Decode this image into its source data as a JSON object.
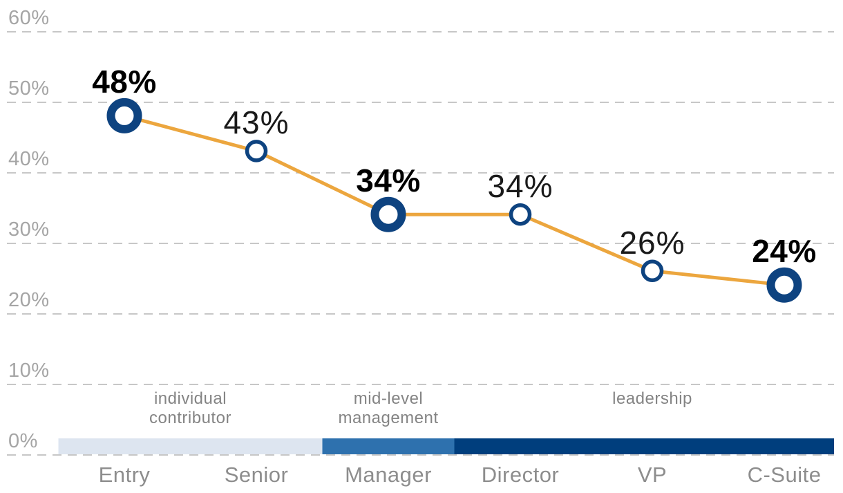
{
  "chart_data": {
    "type": "line",
    "title": "",
    "xlabel": "",
    "ylabel": "",
    "categories": [
      "Entry",
      "Senior",
      "Manager",
      "Director",
      "VP",
      "C-Suite"
    ],
    "values": [
      48,
      43,
      34,
      34,
      26,
      24
    ],
    "point_labels": [
      "48%",
      "43%",
      "34%",
      "34%",
      "26%",
      "24%"
    ],
    "emphasized": [
      true,
      false,
      true,
      false,
      false,
      true
    ],
    "ylim": [
      0,
      60
    ],
    "grid": "horizontal dashed",
    "legend": "none",
    "yticks": [
      {
        "value": 60,
        "label": "60%"
      },
      {
        "value": 50,
        "label": "50%"
      },
      {
        "value": 40,
        "label": "40%"
      },
      {
        "value": 30,
        "label": "30%"
      },
      {
        "value": 20,
        "label": "20%"
      },
      {
        "value": 10,
        "label": "10%"
      },
      {
        "value": 0,
        "label": "0%"
      }
    ],
    "groups": [
      {
        "label": "individual contributor",
        "from": 0,
        "to": 1,
        "color": "#dde5f0"
      },
      {
        "label": "mid-level management",
        "from": 2,
        "to": 2,
        "color": "#2e71ae"
      },
      {
        "label": "leadership",
        "from": 3,
        "to": 5,
        "color": "#003e7d"
      }
    ],
    "colors": {
      "line": "#eca63e",
      "marker": "#0e4380",
      "marker_fill": "#ffffff",
      "gridline": "#c7c7c7",
      "y_axis_text": "#a5a5a5",
      "x_axis_text": "#8d8d8d",
      "group_text": "#848484",
      "label_text": "#000000"
    }
  }
}
